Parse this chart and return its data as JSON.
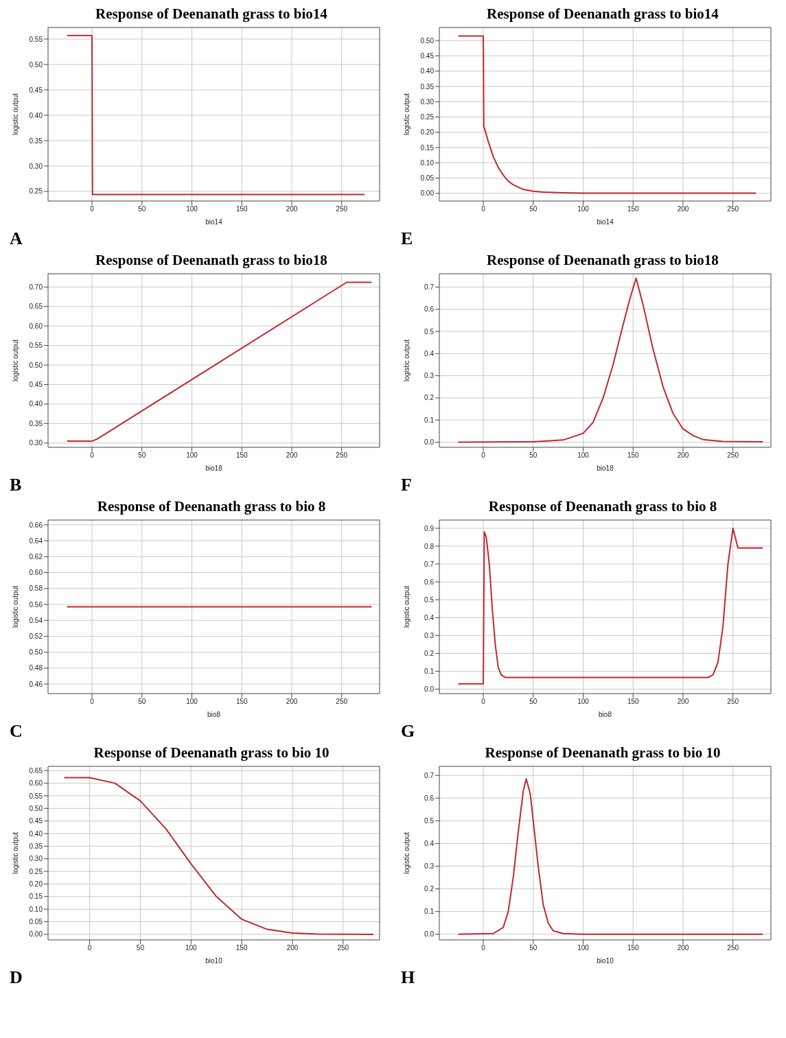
{
  "chart_data": [
    {
      "type": "line",
      "title": "Response of Deenanath grass to bio14",
      "xlabel": "bio14",
      "ylabel": "logistic output",
      "annotations": [
        "A"
      ],
      "grid": true,
      "legend": false,
      "marker": "none",
      "line_style": "solid",
      "color": "#c0282d",
      "x": [
        -25,
        0,
        0.5,
        273
      ],
      "values": [
        0.557,
        0.557,
        0.244,
        0.244
      ],
      "xlim": [
        -44,
        288
      ],
      "xticks": [
        0,
        50,
        100,
        150,
        200,
        250
      ],
      "ylim": [
        0.231,
        0.573
      ],
      "yticks": [
        {
          "value": 0.25,
          "label": "0.25"
        },
        {
          "value": 0.3,
          "label": "0.30"
        },
        {
          "value": 0.35,
          "label": "0.35"
        },
        {
          "value": 0.4,
          "label": "0.40"
        },
        {
          "value": 0.45,
          "label": "0.45"
        },
        {
          "value": 0.5,
          "label": "0.50"
        },
        {
          "value": 0.55,
          "label": "0.55"
        }
      ]
    },
    {
      "type": "line",
      "title": "Response of Deenanath grass to bio14",
      "xlabel": "bio14",
      "ylabel": "logistic output",
      "annotations": [
        "E"
      ],
      "grid": true,
      "legend": false,
      "marker": "none",
      "line_style": "solid",
      "color": "#c0282d",
      "x": [
        -25,
        0,
        0.5,
        5,
        10,
        15,
        20,
        25,
        30,
        40,
        50,
        60,
        80,
        100,
        273
      ],
      "values": [
        0.515,
        0.515,
        0.22,
        0.17,
        0.12,
        0.085,
        0.06,
        0.04,
        0.028,
        0.013,
        0.007,
        0.004,
        0.002,
        0.001,
        0.001
      ],
      "xlim": [
        -44,
        288
      ],
      "xticks": [
        0,
        50,
        100,
        150,
        200,
        250
      ],
      "ylim": [
        -0.025,
        0.543
      ],
      "yticks": [
        {
          "value": 0,
          "label": "0.00"
        },
        {
          "value": 0.05,
          "label": "0.05"
        },
        {
          "value": 0.1,
          "label": "0.10"
        },
        {
          "value": 0.15,
          "label": "0.15"
        },
        {
          "value": 0.2,
          "label": "0.20"
        },
        {
          "value": 0.25,
          "label": "0.25"
        },
        {
          "value": 0.3,
          "label": "0.30"
        },
        {
          "value": 0.35,
          "label": "0.35"
        },
        {
          "value": 0.4,
          "label": "0.40"
        },
        {
          "value": 0.45,
          "label": "0.45"
        },
        {
          "value": 0.5,
          "label": "0.50"
        }
      ]
    },
    {
      "type": "line",
      "title": "Response of Deenanath grass to bio18",
      "xlabel": "bio18",
      "ylabel": "logistic output",
      "annotations": [
        "B"
      ],
      "grid": true,
      "legend": false,
      "marker": "none",
      "line_style": "solid",
      "color": "#c0282d",
      "x": [
        -25,
        0,
        5,
        255,
        280
      ],
      "values": [
        0.305,
        0.305,
        0.31,
        0.712,
        0.712
      ],
      "xlim": [
        -44,
        288
      ],
      "xticks": [
        0,
        50,
        100,
        150,
        200,
        250
      ],
      "ylim": [
        0.289,
        0.734
      ],
      "yticks": [
        {
          "value": 0.3,
          "label": "0.30"
        },
        {
          "value": 0.35,
          "label": "0.35"
        },
        {
          "value": 0.4,
          "label": "0.40"
        },
        {
          "value": 0.45,
          "label": "0.45"
        },
        {
          "value": 0.5,
          "label": "0.50"
        },
        {
          "value": 0.55,
          "label": "0.55"
        },
        {
          "value": 0.6,
          "label": "0.60"
        },
        {
          "value": 0.65,
          "label": "0.65"
        },
        {
          "value": 0.7,
          "label": "0.70"
        }
      ]
    },
    {
      "type": "line",
      "title": "Response of Deenanath grass to bio18",
      "xlabel": "bio18",
      "ylabel": "logistic output",
      "annotations": [
        "F"
      ],
      "grid": true,
      "legend": false,
      "marker": "none",
      "line_style": "solid",
      "color": "#c0282d",
      "x": [
        -25,
        50,
        80,
        100,
        110,
        120,
        130,
        140,
        147,
        153,
        160,
        170,
        180,
        190,
        200,
        210,
        220,
        240,
        280
      ],
      "values": [
        0,
        0.002,
        0.01,
        0.04,
        0.09,
        0.2,
        0.35,
        0.53,
        0.65,
        0.74,
        0.62,
        0.42,
        0.25,
        0.13,
        0.06,
        0.03,
        0.012,
        0.003,
        0.002
      ],
      "xlim": [
        -44,
        288
      ],
      "xticks": [
        0,
        50,
        100,
        150,
        200,
        250
      ],
      "ylim": [
        -0.023,
        0.76
      ],
      "yticks": [
        {
          "value": 0,
          "label": "0.0"
        },
        {
          "value": 0.1,
          "label": "0.1"
        },
        {
          "value": 0.2,
          "label": "0.2"
        },
        {
          "value": 0.3,
          "label": "0.3"
        },
        {
          "value": 0.4,
          "label": "0.4"
        },
        {
          "value": 0.5,
          "label": "0.5"
        },
        {
          "value": 0.6,
          "label": "0.6"
        },
        {
          "value": 0.7,
          "label": "0.7"
        }
      ]
    },
    {
      "type": "line",
      "title": "Response of Deenanath grass to bio 8",
      "xlabel": "bio8",
      "ylabel": "logistic output",
      "annotations": [
        "C"
      ],
      "grid": true,
      "legend": false,
      "marker": "none",
      "line_style": "solid",
      "color": "#c0282d",
      "x": [
        -25,
        280
      ],
      "values": [
        0.557,
        0.557
      ],
      "xlim": [
        -44,
        288
      ],
      "xticks": [
        0,
        50,
        100,
        150,
        200,
        250
      ],
      "ylim": [
        0.448,
        0.666
      ],
      "yticks": [
        {
          "value": 0.46,
          "label": "0.46"
        },
        {
          "value": 0.48,
          "label": "0.48"
        },
        {
          "value": 0.5,
          "label": "0.50"
        },
        {
          "value": 0.52,
          "label": "0.52"
        },
        {
          "value": 0.54,
          "label": "0.54"
        },
        {
          "value": 0.56,
          "label": "0.56"
        },
        {
          "value": 0.58,
          "label": "0.58"
        },
        {
          "value": 0.6,
          "label": "0.60"
        },
        {
          "value": 0.62,
          "label": "0.62"
        },
        {
          "value": 0.64,
          "label": "0.64"
        },
        {
          "value": 0.66,
          "label": "0.66"
        }
      ]
    },
    {
      "type": "line",
      "title": "Response of Deenanath grass to bio 8",
      "xlabel": "bio8",
      "ylabel": "logistic output",
      "annotations": [
        "G"
      ],
      "grid": true,
      "legend": false,
      "marker": "none",
      "line_style": "solid",
      "color": "#c0282d",
      "x": [
        -25,
        0,
        1,
        3,
        6,
        9,
        12,
        15,
        18,
        22,
        225,
        230,
        235,
        240,
        245,
        250,
        255,
        280
      ],
      "values": [
        0.03,
        0.03,
        0.88,
        0.85,
        0.7,
        0.45,
        0.25,
        0.12,
        0.08,
        0.065,
        0.065,
        0.08,
        0.15,
        0.35,
        0.7,
        0.9,
        0.79,
        0.79
      ],
      "xlim": [
        -44,
        288
      ],
      "xticks": [
        0,
        50,
        100,
        150,
        200,
        250
      ],
      "ylim": [
        -0.025,
        0.946
      ],
      "yticks": [
        {
          "value": 0,
          "label": "0.0"
        },
        {
          "value": 0.1,
          "label": "0.1"
        },
        {
          "value": 0.2,
          "label": "0.2"
        },
        {
          "value": 0.3,
          "label": "0.3"
        },
        {
          "value": 0.4,
          "label": "0.4"
        },
        {
          "value": 0.5,
          "label": "0.5"
        },
        {
          "value": 0.6,
          "label": "0.6"
        },
        {
          "value": 0.7,
          "label": "0.7"
        },
        {
          "value": 0.8,
          "label": "0.8"
        },
        {
          "value": 0.9,
          "label": "0.9"
        }
      ]
    },
    {
      "type": "line",
      "title": "Response of Deenanath grass to bio 10",
      "xlabel": "bio10",
      "ylabel": "logistic output",
      "annotations": [
        "D"
      ],
      "grid": true,
      "legend": false,
      "marker": "none",
      "line_style": "solid",
      "color": "#c0282d",
      "x": [
        -25,
        0,
        25,
        50,
        75,
        100,
        125,
        150,
        175,
        200,
        225,
        280
      ],
      "values": [
        0.622,
        0.622,
        0.6,
        0.53,
        0.42,
        0.28,
        0.15,
        0.06,
        0.02,
        0.005,
        0.001,
        0
      ],
      "xlim": [
        -41,
        286
      ],
      "xticks": [
        0,
        50,
        100,
        150,
        200,
        250
      ],
      "ylim": [
        -0.022,
        0.667
      ],
      "yticks": [
        {
          "value": 0,
          "label": "0.00"
        },
        {
          "value": 0.05,
          "label": "0.05"
        },
        {
          "value": 0.1,
          "label": "0.10"
        },
        {
          "value": 0.15,
          "label": "0.15"
        },
        {
          "value": 0.2,
          "label": "0.20"
        },
        {
          "value": 0.25,
          "label": "0.25"
        },
        {
          "value": 0.3,
          "label": "0.30"
        },
        {
          "value": 0.35,
          "label": "0.35"
        },
        {
          "value": 0.4,
          "label": "0.40"
        },
        {
          "value": 0.45,
          "label": "0.45"
        },
        {
          "value": 0.5,
          "label": "0.50"
        },
        {
          "value": 0.55,
          "label": "0.55"
        },
        {
          "value": 0.6,
          "label": "0.60"
        },
        {
          "value": 0.65,
          "label": "0.65"
        }
      ]
    },
    {
      "type": "line",
      "title": "Response of Deenanath grass to bio 10",
      "xlabel": "bio10",
      "ylabel": "logistic output",
      "annotations": [
        "H"
      ],
      "grid": true,
      "legend": false,
      "marker": "none",
      "line_style": "solid",
      "color": "#c0282d",
      "x": [
        -25,
        10,
        20,
        25,
        30,
        35,
        40,
        43,
        47,
        50,
        55,
        60,
        65,
        70,
        80,
        100,
        280
      ],
      "values": [
        0,
        0.003,
        0.03,
        0.1,
        0.25,
        0.45,
        0.63,
        0.685,
        0.62,
        0.5,
        0.3,
        0.13,
        0.05,
        0.015,
        0.003,
        0,
        0
      ],
      "xlim": [
        -44,
        288
      ],
      "xticks": [
        0,
        50,
        100,
        150,
        200,
        250
      ],
      "ylim": [
        -0.025,
        0.74
      ],
      "yticks": [
        {
          "value": 0,
          "label": "0.0"
        },
        {
          "value": 0.1,
          "label": "0.1"
        },
        {
          "value": 0.2,
          "label": "0.2"
        },
        {
          "value": 0.3,
          "label": "0.3"
        },
        {
          "value": 0.4,
          "label": "0.4"
        },
        {
          "value": 0.5,
          "label": "0.5"
        },
        {
          "value": 0.6,
          "label": "0.6"
        },
        {
          "value": 0.7,
          "label": "0.7"
        }
      ]
    }
  ]
}
